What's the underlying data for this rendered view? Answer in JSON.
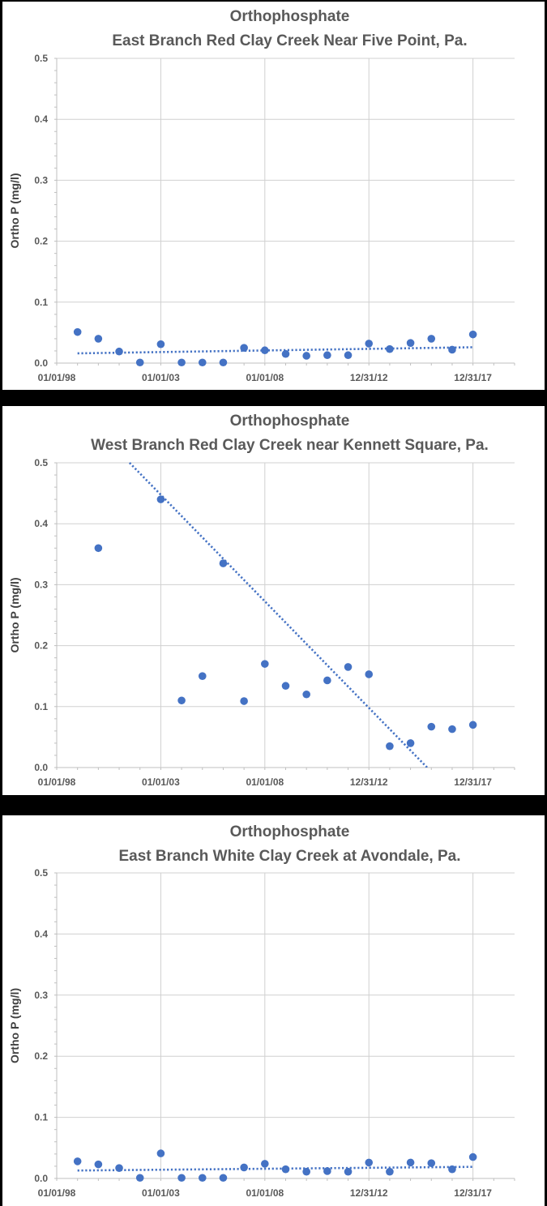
{
  "chart_data": [
    {
      "type": "scatter",
      "title": "Orthophosphate",
      "subtitle": "East Branch Red Clay Creek Near Five Point, Pa.",
      "xlabel": "",
      "ylabel": "Ortho P (mg/l)",
      "ylim": [
        0,
        0.5
      ],
      "yticks": [
        "0.0",
        "0.1",
        "0.2",
        "0.3",
        "0.4",
        "0.5"
      ],
      "xticks": [
        "01/01/98",
        "01/01/03",
        "01/01/08",
        "12/31/12",
        "12/31/17"
      ],
      "x": [
        1999,
        2000,
        2001,
        2002,
        2003,
        2004,
        2005,
        2006,
        2007,
        2008,
        2009,
        2010,
        2011,
        2012,
        2013,
        2014,
        2015,
        2016,
        2017,
        2018
      ],
      "values": [
        0.051,
        0.04,
        0.019,
        0.001,
        0.031,
        0.001,
        0.001,
        0.001,
        0.025,
        0.021,
        0.015,
        0.012,
        0.013,
        0.013,
        0.032,
        0.023,
        0.033,
        0.04,
        0.022,
        0.047
      ],
      "trendline": {
        "style": "linear dotted",
        "x": [
          1999,
          2018
        ],
        "y": [
          0.016,
          0.026
        ]
      },
      "color": "#4472C4"
    },
    {
      "type": "scatter",
      "title": "Orthophosphate",
      "subtitle": "West Branch Red Clay Creek near Kennett Square, Pa.",
      "xlabel": "",
      "ylabel": "Ortho P (mg/l)",
      "ylim": [
        0,
        0.5
      ],
      "yticks": [
        "0.0",
        "0.1",
        "0.2",
        "0.3",
        "0.4",
        "0.5"
      ],
      "xticks": [
        "01/01/98",
        "01/01/03",
        "01/01/08",
        "12/31/12",
        "12/31/17"
      ],
      "x": [
        2000,
        2003,
        2004,
        2005,
        2006,
        2007,
        2008,
        2009,
        2010,
        2011,
        2012,
        2013,
        2014,
        2015,
        2016,
        2017,
        2018
      ],
      "values": [
        0.36,
        0.44,
        0.11,
        0.15,
        0.335,
        0.109,
        0.17,
        0.134,
        0.12,
        0.143,
        0.165,
        0.153,
        0.035,
        0.04,
        0.067,
        0.063,
        0.07
      ],
      "trendline": {
        "style": "linear dotted",
        "x": [
          2001.5,
          2015.8
        ],
        "y": [
          0.5,
          0.0
        ]
      },
      "color": "#4472C4"
    },
    {
      "type": "scatter",
      "title": "Orthophosphate",
      "subtitle": "East Branch White Clay Creek at Avondale, Pa.",
      "xlabel": "",
      "ylabel": "Ortho P (mg/l)",
      "ylim": [
        0,
        0.5
      ],
      "yticks": [
        "0.0",
        "0.1",
        "0.2",
        "0.3",
        "0.4",
        "0.5"
      ],
      "xticks": [
        "01/01/98",
        "01/01/03",
        "01/01/08",
        "12/31/12",
        "12/31/17"
      ],
      "x": [
        1999,
        2000,
        2001,
        2002,
        2003,
        2004,
        2005,
        2006,
        2007,
        2008,
        2009,
        2010,
        2011,
        2012,
        2013,
        2014,
        2015,
        2016,
        2017,
        2018
      ],
      "values": [
        0.028,
        0.023,
        0.017,
        0.001,
        0.041,
        0.001,
        0.001,
        0.001,
        0.018,
        0.024,
        0.015,
        0.011,
        0.012,
        0.011,
        0.026,
        0.011,
        0.026,
        0.025,
        0.015,
        0.035
      ],
      "trendline": {
        "style": "linear dotted",
        "x": [
          1999,
          2018
        ],
        "y": [
          0.013,
          0.019
        ]
      },
      "color": "#4472C4"
    }
  ]
}
